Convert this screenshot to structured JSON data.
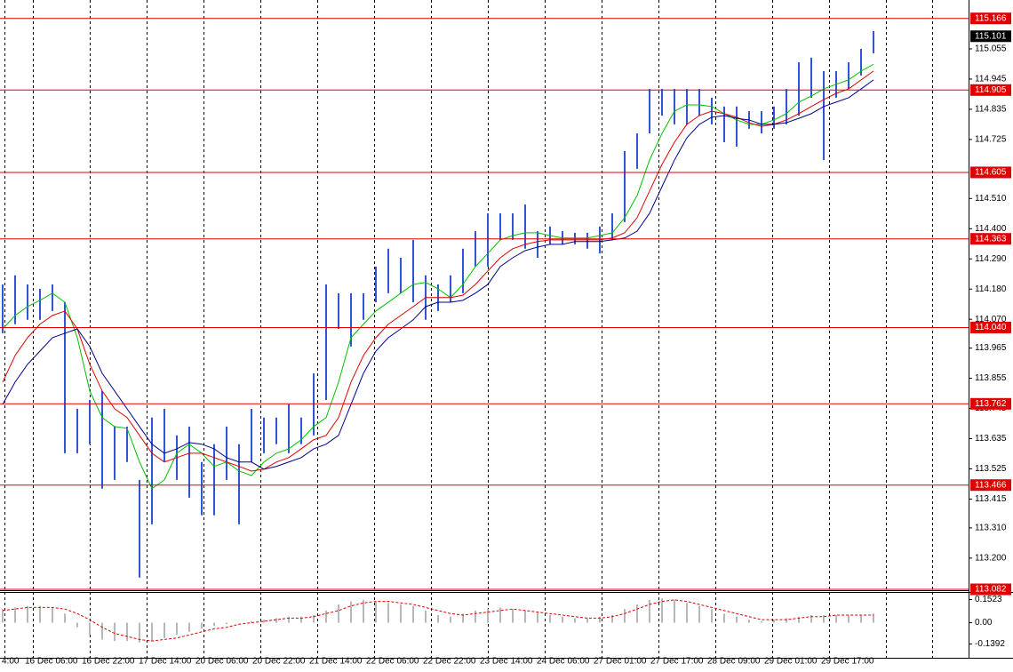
{
  "chart_data": [
    {
      "type": "ohlc",
      "color": "#2f55d4",
      "high": [
        114.197,
        114.23,
        114.197,
        114.181,
        114.197,
        114.132,
        113.744,
        113.776,
        113.809,
        113.679,
        113.679,
        113.485,
        113.712,
        113.744,
        113.647,
        113.679,
        113.55,
        113.615,
        113.679,
        113.615,
        113.744,
        113.712,
        113.712,
        113.76,
        113.712,
        113.873,
        114.197,
        114.165,
        114.165,
        114.165,
        114.262,
        114.327,
        114.294,
        114.359,
        114.23,
        114.197,
        114.23,
        114.327,
        114.391,
        114.456,
        114.456,
        114.456,
        114.488,
        114.391,
        114.408,
        114.391,
        114.385,
        114.385,
        114.408,
        114.456,
        114.683,
        114.747,
        114.909,
        114.909,
        114.909,
        114.909,
        114.909,
        114.877,
        114.845,
        114.845,
        114.828,
        114.828,
        114.845,
        114.909,
        115.006,
        115.023,
        114.974,
        114.974,
        115.006,
        115.055,
        115.12
      ],
      "low": [
        114.019,
        114.052,
        114.068,
        114.068,
        114.1,
        113.582,
        113.582,
        113.615,
        113.453,
        113.485,
        113.55,
        113.129,
        113.323,
        113.55,
        113.485,
        113.42,
        113.356,
        113.356,
        113.485,
        113.323,
        113.55,
        113.582,
        113.615,
        113.582,
        113.615,
        113.647,
        113.776,
        114.035,
        113.971,
        114.068,
        114.132,
        114.165,
        114.165,
        114.132,
        114.068,
        114.1,
        114.132,
        114.165,
        114.262,
        114.262,
        114.359,
        114.359,
        114.327,
        114.294,
        114.343,
        114.343,
        114.343,
        114.327,
        114.31,
        114.359,
        114.424,
        114.618,
        114.747,
        114.812,
        114.78,
        114.78,
        114.812,
        114.78,
        114.715,
        114.699,
        114.764,
        114.747,
        114.764,
        114.78,
        114.812,
        114.877,
        114.65,
        114.877,
        114.909,
        114.958,
        115.039
      ],
      "series": [
        {
          "color": "#00c000",
          "values": [
            114.035,
            114.084,
            114.116,
            114.139,
            114.165,
            114.132,
            114.003,
            113.809,
            113.712,
            113.679,
            113.673,
            113.55,
            113.453,
            113.485,
            113.582,
            113.615,
            113.582,
            113.534,
            113.55,
            113.517,
            113.501,
            113.55,
            113.582,
            113.598,
            113.631,
            113.679,
            113.712,
            113.841,
            114.003,
            114.052,
            114.1,
            114.132,
            114.165,
            114.197,
            114.204,
            114.181,
            114.149,
            114.197,
            114.262,
            114.31,
            114.359,
            114.375,
            114.385,
            114.385,
            114.375,
            114.366,
            114.366,
            114.366,
            114.375,
            114.385,
            114.44,
            114.521,
            114.65,
            114.747,
            114.828,
            114.851,
            114.851,
            114.845,
            114.819,
            114.796,
            114.78,
            114.78,
            114.796,
            114.819,
            114.861,
            114.883,
            114.909,
            114.926,
            114.942,
            114.974,
            114.999
          ]
        },
        {
          "color": "#e00000",
          "values": [
            113.841,
            113.938,
            114.003,
            114.052,
            114.084,
            114.1,
            114.035,
            113.906,
            113.809,
            113.744,
            113.712,
            113.647,
            113.582,
            113.55,
            113.566,
            113.582,
            113.582,
            113.566,
            113.55,
            113.534,
            113.517,
            113.524,
            113.55,
            113.566,
            113.598,
            113.631,
            113.647,
            113.712,
            113.841,
            113.938,
            114.003,
            114.052,
            114.084,
            114.116,
            114.149,
            114.149,
            114.149,
            114.158,
            114.197,
            114.246,
            114.294,
            114.327,
            114.343,
            114.353,
            114.359,
            114.359,
            114.359,
            114.359,
            114.359,
            114.366,
            114.385,
            114.44,
            114.537,
            114.634,
            114.715,
            114.78,
            114.812,
            114.828,
            114.819,
            114.806,
            114.786,
            114.773,
            114.78,
            114.796,
            114.819,
            114.845,
            114.87,
            114.893,
            114.909,
            114.942,
            114.974
          ]
        },
        {
          "color": "#00008b",
          "values": [
            113.76,
            113.841,
            113.906,
            113.954,
            114.003,
            114.019,
            114.035,
            113.971,
            113.873,
            113.809,
            113.744,
            113.679,
            113.615,
            113.582,
            113.598,
            113.621,
            113.615,
            113.598,
            113.566,
            113.55,
            113.55,
            113.524,
            113.534,
            113.55,
            113.566,
            113.598,
            113.615,
            113.647,
            113.76,
            113.873,
            113.954,
            114.003,
            114.035,
            114.068,
            114.116,
            114.132,
            114.132,
            114.139,
            114.165,
            114.197,
            114.262,
            114.294,
            114.32,
            114.333,
            114.343,
            114.343,
            114.353,
            114.353,
            114.353,
            114.359,
            114.366,
            114.391,
            114.456,
            114.553,
            114.65,
            114.731,
            114.78,
            114.806,
            114.812,
            114.802,
            114.796,
            114.78,
            114.78,
            114.786,
            114.802,
            114.819,
            114.845,
            114.861,
            114.877,
            114.909,
            114.942
          ]
        }
      ],
      "levels": [
        115.166,
        114.905,
        114.605,
        114.363,
        {
          "value": 114.04,
          "label": "114.040"
        },
        113.762,
        113.466,
        113.082
      ],
      "level_color": "#e00000",
      "current_price": 115.101,
      "ylim": [
        113.083,
        115.233
      ],
      "yticks": [
        115.055,
        114.945,
        114.835,
        114.725,
        {
          "value": 114.51,
          "label": "114.510"
        },
        {
          "value": 114.4,
          "label": "114.400"
        },
        {
          "value": 114.29,
          "label": "114.290"
        },
        {
          "value": 114.18,
          "label": "114.180"
        },
        {
          "value": 114.07,
          "label": "114.070"
        },
        113.965,
        113.855,
        113.745,
        113.635,
        113.525,
        113.415,
        {
          "value": 113.31,
          "label": "113.310"
        },
        {
          "value": 113.2,
          "label": "113.200"
        }
      ],
      "x_labels": [
        "4:00",
        "16 Dec 06:00",
        "16 Dec 22:00",
        "17 Dec 14:00",
        "20 Dec 06:00",
        "20 Dec 22:00",
        "21 Dec 14:00",
        "22 Dec 06:00",
        "22 Dec 22:00",
        "23 Dec 14:00",
        "24 Dec 06:00",
        "27 Dec 01:00",
        "27 Dec 17:00",
        "28 Dec 09:00",
        "29 Dec 01:00",
        "29 Dec 17:00"
      ]
    },
    {
      "type": "macd",
      "color": "#b8b8b8",
      "values": [
        0.09,
        0.1,
        0.11,
        0.11,
        0.1,
        0.06,
        -0.03,
        -0.08,
        -0.11,
        -0.12,
        -0.12,
        -0.13,
        -0.12,
        -0.1,
        -0.08,
        -0.06,
        -0.04,
        -0.02,
        -0.01,
        0.0,
        0.01,
        0.02,
        0.03,
        0.04,
        0.04,
        0.05,
        0.08,
        0.12,
        0.14,
        0.15,
        0.14,
        0.13,
        0.12,
        0.11,
        0.08,
        0.05,
        0.04,
        0.06,
        0.08,
        0.09,
        0.1,
        0.09,
        0.08,
        0.07,
        0.05,
        0.04,
        0.03,
        0.03,
        0.04,
        0.05,
        0.09,
        0.12,
        0.15,
        0.16,
        0.15,
        0.13,
        0.11,
        0.09,
        0.06,
        0.04,
        0.02,
        0.01,
        0.02,
        0.03,
        0.04,
        0.05,
        0.05,
        0.05,
        0.05,
        0.05,
        0.06
      ],
      "series": [
        {
          "color": "#e00000",
          "values": [
            0.08,
            0.09,
            0.1,
            0.1,
            0.1,
            0.09,
            0.06,
            0.02,
            -0.03,
            -0.07,
            -0.09,
            -0.11,
            -0.12,
            -0.11,
            -0.1,
            -0.08,
            -0.06,
            -0.04,
            -0.03,
            -0.01,
            0.0,
            0.01,
            0.02,
            0.03,
            0.03,
            0.04,
            0.06,
            0.08,
            0.11,
            0.13,
            0.14,
            0.14,
            0.13,
            0.12,
            0.1,
            0.08,
            0.06,
            0.05,
            0.06,
            0.07,
            0.08,
            0.09,
            0.08,
            0.07,
            0.06,
            0.05,
            0.04,
            0.03,
            0.03,
            0.04,
            0.06,
            0.09,
            0.12,
            0.14,
            0.15,
            0.14,
            0.12,
            0.1,
            0.08,
            0.06,
            0.04,
            0.02,
            0.02,
            0.02,
            0.03,
            0.04,
            0.04,
            0.05,
            0.05,
            0.05,
            0.05
          ]
        }
      ],
      "ylim": [
        -0.23,
        0.19
      ],
      "yticks": [
        0.1523,
        {
          "value": 0,
          "label": "0.00"
        },
        -0.1392
      ]
    }
  ]
}
